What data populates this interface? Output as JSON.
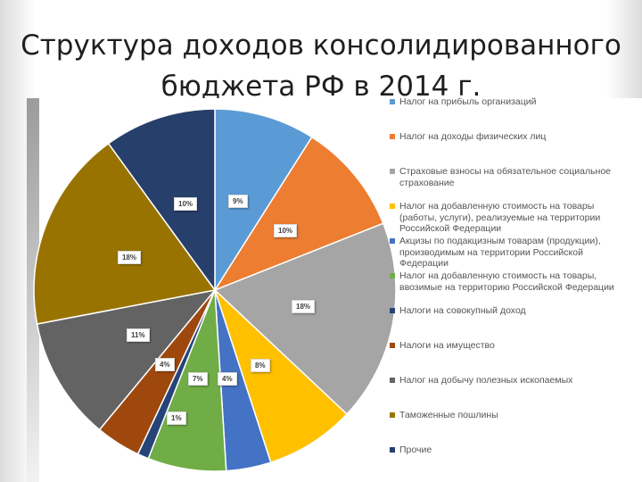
{
  "title": {
    "line1": "Структура доходов консолидированного",
    "line2": "бюджета РФ в 2014 г."
  },
  "chart_data": {
    "type": "pie",
    "title": "Структура доходов консолидированного бюджета РФ в 2014 г.",
    "legend_position": "right",
    "categories": [
      "Налог на прибыль организаций",
      "Налог на доходы физических лиц",
      "Страховые взносы на обязательное социальное страхование",
      "Налог на добавленную стоимость на товары (работы, услуги), реализуемые на территории Российской Федерации",
      "Акцизы по подакцизным товарам (продукции), производимым на территории Российской Федерации",
      "Налог на добавленную стоимость на товары, ввозимые на территорию Российской Федерации",
      "Налоги на совокупный доход",
      "Налоги на имущество",
      "Налог на добычу полезных ископаемых",
      "Таможенные пошлины",
      "Прочие"
    ],
    "values": [
      9,
      10,
      18,
      8,
      4,
      7,
      1,
      4,
      11,
      18,
      10
    ],
    "data_labels": [
      "9%",
      "10%",
      "18%",
      "8%",
      "4%",
      "7%",
      "1%",
      "4%",
      "11%",
      "18%",
      "10%"
    ],
    "colors": [
      "#5b9bd5",
      "#ed7d31",
      "#a5a5a5",
      "#ffc000",
      "#4472c4",
      "#70ad47",
      "#264478",
      "#9e480e",
      "#636363",
      "#997300",
      "#26406b"
    ]
  }
}
